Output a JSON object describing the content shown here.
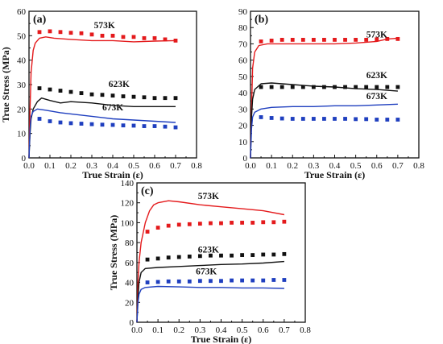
{
  "chart_data": [
    {
      "panel": "(a)",
      "type": "line",
      "xlabel": "True Strain (ε)",
      "ylabel": "True Stress (MPa)",
      "xlim": [
        0.0,
        0.8
      ],
      "ylim": [
        0,
        60
      ],
      "xticks": [
        "0.0",
        "0.1",
        "0.2",
        "0.3",
        "0.4",
        "0.5",
        "0.6",
        "0.7",
        "0.8"
      ],
      "yticks": [
        "0",
        "10",
        "20",
        "30",
        "40",
        "50",
        "60"
      ],
      "series": [
        {
          "name": "573K",
          "color": "#e41a1c",
          "line": [
            [
              0,
              0
            ],
            [
              0.005,
              20
            ],
            [
              0.01,
              35
            ],
            [
              0.02,
              44
            ],
            [
              0.03,
              47
            ],
            [
              0.05,
              49
            ],
            [
              0.08,
              49.5
            ],
            [
              0.12,
              49
            ],
            [
              0.2,
              48.5
            ],
            [
              0.3,
              48
            ],
            [
              0.4,
              48
            ],
            [
              0.5,
              47.5
            ],
            [
              0.6,
              47.8
            ],
            [
              0.7,
              48
            ]
          ],
          "points": [
            [
              0.05,
              51.5
            ],
            [
              0.1,
              51.8
            ],
            [
              0.15,
              51.5
            ],
            [
              0.2,
              51.2
            ],
            [
              0.25,
              51
            ],
            [
              0.3,
              50.5
            ],
            [
              0.35,
              50
            ],
            [
              0.4,
              50
            ],
            [
              0.45,
              49.5
            ],
            [
              0.5,
              49.5
            ],
            [
              0.55,
              49
            ],
            [
              0.6,
              49
            ],
            [
              0.65,
              48.5
            ],
            [
              0.7,
              48
            ]
          ]
        },
        {
          "name": "623K",
          "color": "#111111",
          "line": [
            [
              0,
              0
            ],
            [
              0.005,
              10
            ],
            [
              0.01,
              16
            ],
            [
              0.02,
              20
            ],
            [
              0.04,
              23
            ],
            [
              0.06,
              24.5
            ],
            [
              0.1,
              23.5
            ],
            [
              0.15,
              22.5
            ],
            [
              0.2,
              23
            ],
            [
              0.3,
              22.5
            ],
            [
              0.35,
              22
            ],
            [
              0.4,
              21.5
            ],
            [
              0.5,
              21
            ],
            [
              0.6,
              21
            ],
            [
              0.7,
              21
            ]
          ],
          "points": [
            [
              0.05,
              28.5
            ],
            [
              0.1,
              28
            ],
            [
              0.15,
              27.5
            ],
            [
              0.2,
              27
            ],
            [
              0.25,
              26.5
            ],
            [
              0.3,
              26
            ],
            [
              0.35,
              25.8
            ],
            [
              0.4,
              25.5
            ],
            [
              0.45,
              25.2
            ],
            [
              0.5,
              25
            ],
            [
              0.55,
              24.8
            ],
            [
              0.6,
              24.5
            ],
            [
              0.65,
              24.5
            ],
            [
              0.7,
              24.5
            ]
          ]
        },
        {
          "name": "673K",
          "color": "#1f3fbf",
          "line": [
            [
              0,
              0
            ],
            [
              0.005,
              12
            ],
            [
              0.01,
              17
            ],
            [
              0.02,
              19
            ],
            [
              0.04,
              20
            ],
            [
              0.08,
              19.5
            ],
            [
              0.15,
              18.5
            ],
            [
              0.2,
              18
            ],
            [
              0.3,
              17
            ],
            [
              0.4,
              16
            ],
            [
              0.5,
              15.5
            ],
            [
              0.6,
              15
            ],
            [
              0.7,
              14.5
            ]
          ],
          "points": [
            [
              0.05,
              16
            ],
            [
              0.1,
              15
            ],
            [
              0.15,
              14.5
            ],
            [
              0.2,
              14.2
            ],
            [
              0.25,
              14
            ],
            [
              0.3,
              13.8
            ],
            [
              0.35,
              13.6
            ],
            [
              0.4,
              13.5
            ],
            [
              0.45,
              13.3
            ],
            [
              0.5,
              13.2
            ],
            [
              0.55,
              13
            ],
            [
              0.6,
              13
            ],
            [
              0.65,
              12.8
            ],
            [
              0.7,
              12.5
            ]
          ]
        }
      ]
    },
    {
      "panel": "(b)",
      "type": "line",
      "xlabel": "True Strain (ε)",
      "ylabel": "",
      "xlim": [
        0.0,
        0.8
      ],
      "ylim": [
        0,
        90
      ],
      "xticks": [
        "0.0",
        "0.1",
        "0.2",
        "0.3",
        "0.4",
        "0.5",
        "0.6",
        "0.7",
        "0.8"
      ],
      "yticks": [
        "0",
        "10",
        "20",
        "30",
        "40",
        "50",
        "60",
        "70",
        "80",
        "90"
      ],
      "series": [
        {
          "name": "573K",
          "color": "#e41a1c",
          "line": [
            [
              0,
              0
            ],
            [
              0.005,
              30
            ],
            [
              0.01,
              55
            ],
            [
              0.02,
              65
            ],
            [
              0.04,
              69
            ],
            [
              0.08,
              70
            ],
            [
              0.15,
              70
            ],
            [
              0.3,
              70
            ],
            [
              0.4,
              70
            ],
            [
              0.5,
              70.5
            ],
            [
              0.6,
              71.5
            ],
            [
              0.65,
              73
            ],
            [
              0.7,
              73.5
            ]
          ],
          "points": [
            [
              0.05,
              71.5
            ],
            [
              0.1,
              72
            ],
            [
              0.15,
              72.5
            ],
            [
              0.2,
              72.5
            ],
            [
              0.25,
              72.5
            ],
            [
              0.3,
              72.5
            ],
            [
              0.35,
              72.5
            ],
            [
              0.4,
              72.5
            ],
            [
              0.45,
              72.5
            ],
            [
              0.5,
              72.5
            ],
            [
              0.55,
              72.5
            ],
            [
              0.6,
              72.8
            ],
            [
              0.65,
              73
            ],
            [
              0.7,
              73
            ]
          ]
        },
        {
          "name": "623K",
          "color": "#111111",
          "line": [
            [
              0,
              0
            ],
            [
              0.005,
              25
            ],
            [
              0.01,
              36
            ],
            [
              0.02,
              42
            ],
            [
              0.05,
              45.5
            ],
            [
              0.1,
              46
            ],
            [
              0.2,
              45
            ],
            [
              0.3,
              44
            ],
            [
              0.4,
              43.5
            ],
            [
              0.5,
              42.5
            ],
            [
              0.6,
              42
            ],
            [
              0.7,
              41
            ]
          ],
          "points": [
            [
              0.05,
              43.5
            ],
            [
              0.1,
              43.5
            ],
            [
              0.15,
              43.5
            ],
            [
              0.2,
              43.5
            ],
            [
              0.25,
              43.5
            ],
            [
              0.3,
              43.5
            ],
            [
              0.35,
              43.5
            ],
            [
              0.4,
              43.5
            ],
            [
              0.45,
              43.5
            ],
            [
              0.5,
              43.5
            ],
            [
              0.55,
              43.5
            ],
            [
              0.6,
              43.5
            ],
            [
              0.65,
              43.5
            ],
            [
              0.7,
              43.5
            ]
          ]
        },
        {
          "name": "673K",
          "color": "#1f3fbf",
          "line": [
            [
              0,
              0
            ],
            [
              0.005,
              18
            ],
            [
              0.01,
              25
            ],
            [
              0.02,
              28
            ],
            [
              0.05,
              30
            ],
            [
              0.1,
              31
            ],
            [
              0.2,
              31.5
            ],
            [
              0.3,
              31.5
            ],
            [
              0.4,
              32
            ],
            [
              0.5,
              32
            ],
            [
              0.6,
              32.5
            ],
            [
              0.7,
              33
            ]
          ],
          "points": [
            [
              0.05,
              25
            ],
            [
              0.1,
              24.5
            ],
            [
              0.15,
              24.2
            ],
            [
              0.2,
              24
            ],
            [
              0.25,
              24
            ],
            [
              0.3,
              24
            ],
            [
              0.35,
              24
            ],
            [
              0.4,
              24
            ],
            [
              0.45,
              24
            ],
            [
              0.5,
              23.8
            ],
            [
              0.55,
              23.8
            ],
            [
              0.6,
              23.5
            ],
            [
              0.65,
              23.5
            ],
            [
              0.7,
              23.5
            ]
          ]
        }
      ]
    },
    {
      "panel": "(c)",
      "type": "line",
      "xlabel": "True Strain (ε)",
      "ylabel": "True Stress (MPa)",
      "xlim": [
        0.0,
        0.8
      ],
      "ylim": [
        0,
        140
      ],
      "xticks": [
        "0.0",
        "0.1",
        "0.2",
        "0.3",
        "0.4",
        "0.5",
        "0.6",
        "0.7",
        "0.8"
      ],
      "yticks": [
        "0",
        "20",
        "40",
        "60",
        "80",
        "100",
        "120",
        "140"
      ],
      "series": [
        {
          "name": "573K",
          "color": "#e41a1c",
          "line": [
            [
              0,
              0
            ],
            [
              0.005,
              40
            ],
            [
              0.01,
              60
            ],
            [
              0.02,
              80
            ],
            [
              0.04,
              100
            ],
            [
              0.06,
              112
            ],
            [
              0.08,
              118
            ],
            [
              0.1,
              120
            ],
            [
              0.15,
              122
            ],
            [
              0.2,
              121
            ],
            [
              0.3,
              118
            ],
            [
              0.4,
              116
            ],
            [
              0.5,
              114
            ],
            [
              0.6,
              112
            ],
            [
              0.7,
              108
            ]
          ],
          "points": [
            [
              0.05,
              91
            ],
            [
              0.1,
              95
            ],
            [
              0.15,
              97
            ],
            [
              0.2,
              98
            ],
            [
              0.25,
              98.5
            ],
            [
              0.3,
              99
            ],
            [
              0.35,
              99.5
            ],
            [
              0.4,
              99.5
            ],
            [
              0.45,
              100
            ],
            [
              0.5,
              100
            ],
            [
              0.55,
              100
            ],
            [
              0.6,
              100.5
            ],
            [
              0.65,
              100.5
            ],
            [
              0.7,
              101
            ]
          ]
        },
        {
          "name": "623K",
          "color": "#111111",
          "line": [
            [
              0,
              0
            ],
            [
              0.005,
              25
            ],
            [
              0.01,
              40
            ],
            [
              0.02,
              50
            ],
            [
              0.04,
              54
            ],
            [
              0.1,
              55
            ],
            [
              0.2,
              56
            ],
            [
              0.3,
              57
            ],
            [
              0.4,
              58
            ],
            [
              0.5,
              58.5
            ],
            [
              0.6,
              59.5
            ],
            [
              0.7,
              61
            ]
          ],
          "points": [
            [
              0.05,
              63
            ],
            [
              0.1,
              64
            ],
            [
              0.15,
              65
            ],
            [
              0.2,
              65.5
            ],
            [
              0.25,
              66
            ],
            [
              0.3,
              66.5
            ],
            [
              0.35,
              67
            ],
            [
              0.4,
              67
            ],
            [
              0.45,
              67
            ],
            [
              0.5,
              67.5
            ],
            [
              0.55,
              67.5
            ],
            [
              0.6,
              68
            ],
            [
              0.65,
              68
            ],
            [
              0.7,
              68.5
            ]
          ]
        },
        {
          "name": "673K",
          "color": "#1f3fbf",
          "line": [
            [
              0,
              0
            ],
            [
              0.005,
              20
            ],
            [
              0.01,
              28
            ],
            [
              0.02,
              33
            ],
            [
              0.04,
              35
            ],
            [
              0.1,
              36
            ],
            [
              0.2,
              35.5
            ],
            [
              0.3,
              35
            ],
            [
              0.4,
              35
            ],
            [
              0.5,
              34.5
            ],
            [
              0.6,
              34.5
            ],
            [
              0.7,
              34
            ]
          ],
          "points": [
            [
              0.05,
              40
            ],
            [
              0.1,
              40.5
            ],
            [
              0.15,
              41
            ],
            [
              0.2,
              41
            ],
            [
              0.25,
              41
            ],
            [
              0.3,
              41.5
            ],
            [
              0.35,
              41.5
            ],
            [
              0.4,
              41.5
            ],
            [
              0.45,
              42
            ],
            [
              0.5,
              42
            ],
            [
              0.55,
              42
            ],
            [
              0.6,
              42
            ],
            [
              0.65,
              42.5
            ],
            [
              0.7,
              42.5
            ]
          ]
        }
      ]
    }
  ]
}
